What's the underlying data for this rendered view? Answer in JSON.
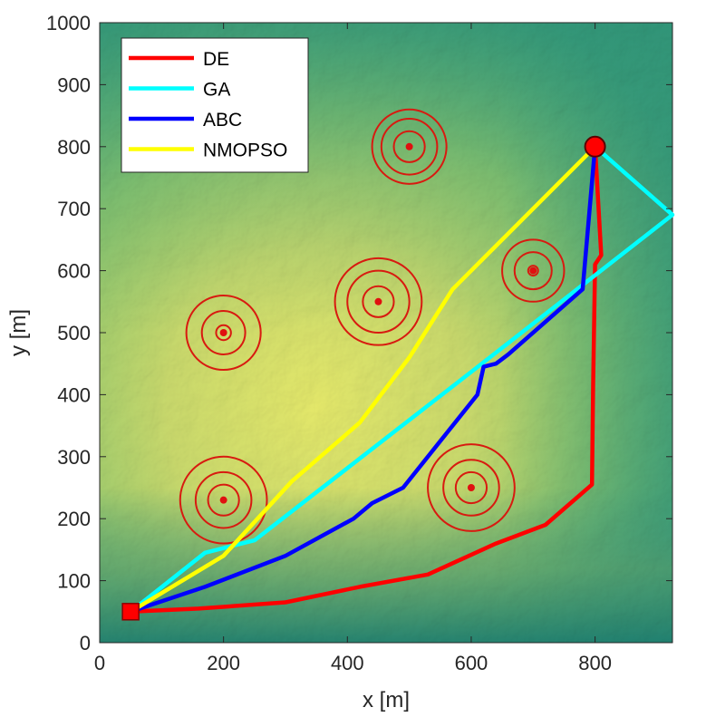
{
  "chart_data": {
    "type": "line",
    "title": "",
    "xlabel": "x [m]",
    "ylabel": "y [m]",
    "xlim": [
      0,
      925
    ],
    "ylim": [
      0,
      1000
    ],
    "x_ticks": [
      "0",
      "200",
      "400",
      "600",
      "800"
    ],
    "y_ticks": [
      "0",
      "100",
      "200",
      "300",
      "400",
      "500",
      "600",
      "700",
      "800",
      "900",
      "1000"
    ],
    "background": "terrain elevation map",
    "grid": false,
    "legend_position": "top-left",
    "start_point": {
      "x": 50,
      "y": 50,
      "marker": "square",
      "color": "#ff0000"
    },
    "goal_point": {
      "x": 800,
      "y": 800,
      "marker": "circle",
      "color": "#ff0000"
    },
    "series": [
      {
        "name": "DE",
        "color": "#ff0000",
        "points": [
          [
            50,
            50
          ],
          [
            160,
            55
          ],
          [
            300,
            65
          ],
          [
            420,
            90
          ],
          [
            530,
            110
          ],
          [
            640,
            160
          ],
          [
            720,
            190
          ],
          [
            795,
            255
          ],
          [
            797,
            420
          ],
          [
            800,
            610
          ],
          [
            810,
            625
          ],
          [
            800,
            800
          ]
        ]
      },
      {
        "name": "GA",
        "color": "#00ffff",
        "points": [
          [
            50,
            50
          ],
          [
            170,
            145
          ],
          [
            250,
            165
          ],
          [
            630,
            460
          ],
          [
            925,
            690
          ],
          [
            800,
            800
          ]
        ]
      },
      {
        "name": "ABC",
        "color": "#0000ff",
        "points": [
          [
            50,
            50
          ],
          [
            170,
            90
          ],
          [
            300,
            140
          ],
          [
            410,
            200
          ],
          [
            440,
            225
          ],
          [
            490,
            250
          ],
          [
            570,
            350
          ],
          [
            610,
            400
          ],
          [
            620,
            445
          ],
          [
            640,
            450
          ],
          [
            660,
            465
          ],
          [
            780,
            570
          ],
          [
            800,
            800
          ]
        ]
      },
      {
        "name": "NMOPSO",
        "color": "#ffff00",
        "points": [
          [
            50,
            50
          ],
          [
            200,
            140
          ],
          [
            310,
            260
          ],
          [
            420,
            355
          ],
          [
            500,
            460
          ],
          [
            570,
            570
          ],
          [
            620,
            620
          ],
          [
            800,
            800
          ]
        ]
      }
    ],
    "threats": [
      {
        "x": 500,
        "y": 800,
        "rings": [
          25,
          45,
          60
        ]
      },
      {
        "x": 700,
        "y": 600,
        "rings": [
          8,
          30,
          50
        ]
      },
      {
        "x": 450,
        "y": 550,
        "rings": [
          25,
          50,
          70
        ]
      },
      {
        "x": 200,
        "y": 500,
        "rings": [
          12,
          35,
          60
        ]
      },
      {
        "x": 200,
        "y": 230,
        "rings": [
          25,
          45,
          70
        ]
      },
      {
        "x": 600,
        "y": 250,
        "rings": [
          25,
          45,
          70
        ]
      }
    ]
  }
}
